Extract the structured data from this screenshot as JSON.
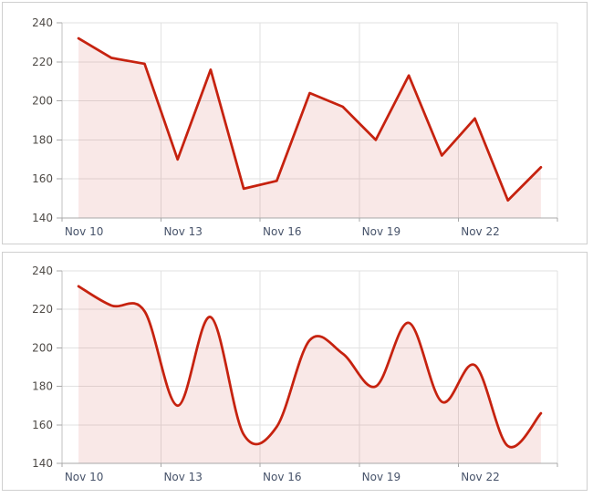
{
  "page": {
    "background": "#ffffff",
    "panel_border": "#cfcfcf"
  },
  "chart_data": [
    {
      "type": "area",
      "interpolation": "linear",
      "title": "",
      "xlabel": "",
      "ylabel": "",
      "categories": [
        "Nov 10",
        "Nov 11",
        "Nov 12",
        "Nov 13",
        "Nov 14",
        "Nov 15",
        "Nov 16",
        "Nov 17",
        "Nov 18",
        "Nov 19",
        "Nov 20",
        "Nov 21",
        "Nov 22",
        "Nov 23",
        "Nov 24"
      ],
      "values": [
        232,
        222,
        219,
        170,
        216,
        155,
        159,
        204,
        197,
        180,
        213,
        172,
        191,
        149,
        166
      ],
      "ylim": [
        140,
        240
      ],
      "y_ticks": [
        140,
        160,
        180,
        200,
        220,
        240
      ],
      "x_tick_step": 3,
      "x_tick_labels": [
        "Nov 10",
        "Nov 13",
        "Nov 16",
        "Nov 19",
        "Nov 22"
      ],
      "grid": true,
      "legend": "none",
      "colors": {
        "line": "#c6220f",
        "fill": "rgba(198,34,15,0.10)",
        "grid": "#e2e2e2",
        "axis_x": "#a8a8a8",
        "axis_y": "#c2c2c2",
        "tick": "#a8a8a8",
        "x_label": "#47536a",
        "y_label": "#4f4b47"
      }
    },
    {
      "type": "area",
      "interpolation": "spline",
      "title": "",
      "xlabel": "",
      "ylabel": "",
      "categories": [
        "Nov 10",
        "Nov 11",
        "Nov 12",
        "Nov 13",
        "Nov 14",
        "Nov 15",
        "Nov 16",
        "Nov 17",
        "Nov 18",
        "Nov 19",
        "Nov 20",
        "Nov 21",
        "Nov 22",
        "Nov 23",
        "Nov 24"
      ],
      "values": [
        232,
        222,
        219,
        170,
        216,
        155,
        159,
        204,
        197,
        180,
        213,
        172,
        191,
        149,
        166
      ],
      "ylim": [
        140,
        240
      ],
      "y_ticks": [
        140,
        160,
        180,
        200,
        220,
        240
      ],
      "x_tick_step": 3,
      "x_tick_labels": [
        "Nov 10",
        "Nov 13",
        "Nov 16",
        "Nov 19",
        "Nov 22"
      ],
      "grid": true,
      "legend": "none",
      "colors": {
        "line": "#c6220f",
        "fill": "rgba(198,34,15,0.10)",
        "grid": "#e2e2e2",
        "axis_x": "#a8a8a8",
        "axis_y": "#c2c2c2",
        "tick": "#a8a8a8",
        "x_label": "#47536a",
        "y_label": "#4f4b47"
      }
    }
  ]
}
